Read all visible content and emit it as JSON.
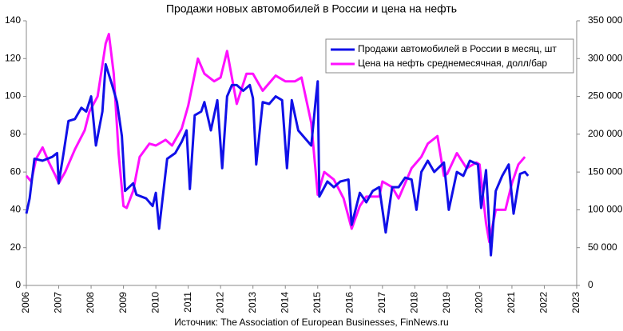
{
  "chart_data": {
    "type": "line",
    "title": "Продажи новых автомобилей в России и цена на нефть",
    "source": "Источник: The Association of European Businesses, FinNews.ru",
    "xlim": [
      2006,
      2023
    ],
    "xticks": [
      2006,
      2007,
      2008,
      2009,
      2010,
      2011,
      2012,
      2013,
      2014,
      2015,
      2016,
      2017,
      2018,
      2019,
      2020,
      2021,
      2022,
      2023
    ],
    "ylim": [
      0,
      140
    ],
    "yticks": [
      0,
      20,
      40,
      60,
      80,
      100,
      120,
      140
    ],
    "y2lim": [
      0,
      350000
    ],
    "y2ticks": [
      0,
      {
        "value": 50000,
        "label": "50 000"
      },
      {
        "value": 100000,
        "label": "100 000"
      },
      {
        "value": 150000,
        "label": "150 000"
      },
      {
        "value": 200000,
        "label": "200 000"
      },
      {
        "value": 250000,
        "label": "250 000"
      },
      {
        "value": 300000,
        "label": "300 000"
      },
      {
        "value": 350000,
        "label": "350 000"
      }
    ],
    "grid": false,
    "legend": "upper right",
    "series": [
      {
        "name": "Продажи  автомобилей в России в месяц, шт",
        "color": "#1010e8",
        "axis": "y2",
        "x": [
          2006.0,
          2006.1,
          2006.25,
          2006.5,
          2006.8,
          2006.95,
          2007.0,
          2007.15,
          2007.3,
          2007.5,
          2007.7,
          2007.85,
          2008.0,
          2008.15,
          2008.35,
          2008.45,
          2008.65,
          2008.8,
          2008.95,
          2009.05,
          2009.3,
          2009.4,
          2009.7,
          2009.9,
          2010.0,
          2010.1,
          2010.35,
          2010.6,
          2010.8,
          2010.95,
          2011.05,
          2011.2,
          2011.4,
          2011.5,
          2011.7,
          2011.9,
          2012.05,
          2012.2,
          2012.35,
          2012.5,
          2012.7,
          2012.9,
          2013.0,
          2013.1,
          2013.3,
          2013.5,
          2013.7,
          2013.9,
          2014.05,
          2014.2,
          2014.4,
          2014.6,
          2014.8,
          2014.95,
          2015.0,
          2015.05,
          2015.3,
          2015.5,
          2015.7,
          2015.95,
          2016.05,
          2016.3,
          2016.5,
          2016.7,
          2016.9,
          2017.1,
          2017.3,
          2017.5,
          2017.7,
          2017.9,
          2018.05,
          2018.2,
          2018.4,
          2018.6,
          2018.9,
          2019.05,
          2019.3,
          2019.5,
          2019.7,
          2019.95,
          2020.05,
          2020.2,
          2020.35,
          2020.5,
          2020.7,
          2020.9,
          2021.05,
          2021.25,
          2021.4,
          2021.5
        ],
        "values": [
          95000,
          115000,
          167500,
          165000,
          170000,
          175000,
          135000,
          175000,
          217500,
          220000,
          235000,
          230000,
          250000,
          185000,
          230000,
          292500,
          265000,
          242500,
          197500,
          125000,
          135000,
          120000,
          115000,
          105000,
          122500,
          75000,
          167500,
          175000,
          190000,
          205000,
          127500,
          225000,
          230000,
          242500,
          205000,
          245000,
          155000,
          250000,
          265000,
          265000,
          257500,
          265000,
          247500,
          160000,
          242500,
          240000,
          250000,
          245000,
          155000,
          245000,
          205000,
          195000,
          185000,
          250000,
          270000,
          117500,
          137500,
          130000,
          137500,
          140000,
          80000,
          122500,
          110000,
          125000,
          130000,
          70000,
          130000,
          130000,
          142500,
          140000,
          100000,
          150000,
          165000,
          150000,
          162500,
          100000,
          150000,
          145000,
          165000,
          160000,
          102500,
          152500,
          40000,
          125000,
          145000,
          160000,
          95000,
          147500,
          150000,
          145000
        ]
      },
      {
        "name": "Цена на нефть среднемесячная, долл/бар",
        "color": "#ff10ff",
        "x": [
          2006.0,
          2006.15,
          2006.3,
          2006.5,
          2006.7,
          2006.9,
          2007.0,
          2007.2,
          2007.5,
          2007.8,
          2007.95,
          2008.2,
          2008.45,
          2008.55,
          2008.7,
          2008.85,
          2009.0,
          2009.1,
          2009.3,
          2009.5,
          2009.8,
          2010.0,
          2010.3,
          2010.5,
          2010.8,
          2011.0,
          2011.3,
          2011.5,
          2011.8,
          2012.0,
          2012.2,
          2012.5,
          2012.8,
          2013.0,
          2013.3,
          2013.5,
          2013.7,
          2014.0,
          2014.3,
          2014.5,
          2014.8,
          2015.0,
          2015.2,
          2015.5,
          2015.8,
          2016.05,
          2016.3,
          2016.5,
          2016.9,
          2017.0,
          2017.3,
          2017.5,
          2017.9,
          2018.2,
          2018.4,
          2018.7,
          2018.9,
          2019.0,
          2019.3,
          2019.6,
          2019.9,
          2020.0,
          2020.2,
          2020.3,
          2020.5,
          2020.8,
          2021.0,
          2021.2,
          2021.4
        ],
        "values": [
          58,
          55,
          67,
          73,
          65,
          58,
          54,
          60,
          72,
          82,
          92,
          100,
          128,
          133,
          112,
          70,
          42,
          41,
          50,
          68,
          75,
          74,
          77,
          74,
          83,
          95,
          120,
          112,
          108,
          110,
          124,
          96,
          112,
          112,
          103,
          107,
          111,
          108,
          108,
          110,
          86,
          48,
          60,
          56,
          46,
          30,
          42,
          47,
          47,
          55,
          52,
          46,
          62,
          68,
          75,
          79,
          58,
          59,
          70,
          62,
          65,
          64,
          33,
          23,
          40,
          40,
          54,
          64,
          68
        ]
      }
    ]
  }
}
